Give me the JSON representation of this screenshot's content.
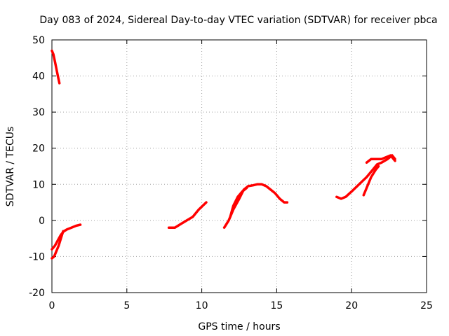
{
  "chart_data": {
    "type": "line",
    "title": "Day 083 of 2024, Sidereal Day-to-day VTEC variation (SDTVAR) for receiver pbca",
    "xlabel": "GPS time / hours",
    "ylabel": "SDTVAR / TECUs",
    "xlim": [
      0,
      25
    ],
    "ylim": [
      -20,
      50
    ],
    "xticks": [
      0,
      5,
      10,
      15,
      20,
      25
    ],
    "yticks": [
      -20,
      -10,
      0,
      10,
      20,
      30,
      40,
      50
    ],
    "grid": true,
    "series_color": "#ff0000",
    "series": [
      {
        "name": "arc-1",
        "points": [
          [
            0.0,
            47
          ],
          [
            0.1,
            46
          ],
          [
            0.2,
            44
          ],
          [
            0.3,
            42
          ],
          [
            0.4,
            40
          ],
          [
            0.5,
            38
          ]
        ]
      },
      {
        "name": "arc-2",
        "points": [
          [
            0.0,
            -8
          ],
          [
            0.2,
            -7
          ],
          [
            0.4,
            -5.5
          ],
          [
            0.6,
            -4
          ],
          [
            0.8,
            -3
          ],
          [
            1.0,
            -2.5
          ],
          [
            1.3,
            -2
          ],
          [
            1.6,
            -1.5
          ],
          [
            1.9,
            -1.2
          ]
        ]
      },
      {
        "name": "arc-3",
        "points": [
          [
            0.0,
            -10.5
          ],
          [
            0.15,
            -10
          ],
          [
            0.3,
            -8.5
          ],
          [
            0.45,
            -7
          ],
          [
            0.6,
            -5
          ],
          [
            0.75,
            -3
          ]
        ]
      },
      {
        "name": "arc-4",
        "points": [
          [
            7.8,
            -2
          ],
          [
            8.2,
            -2
          ],
          [
            8.6,
            -1
          ],
          [
            9.0,
            0
          ],
          [
            9.4,
            1
          ],
          [
            9.8,
            3
          ],
          [
            10.3,
            5
          ]
        ]
      },
      {
        "name": "arc-5",
        "points": [
          [
            11.5,
            -2
          ],
          [
            11.8,
            0
          ],
          [
            12.1,
            3
          ],
          [
            12.5,
            6
          ],
          [
            12.8,
            8.5
          ],
          [
            13.1,
            9.5
          ],
          [
            13.4,
            9.7
          ],
          [
            13.7,
            10
          ],
          [
            14.0,
            10
          ],
          [
            14.3,
            9.5
          ],
          [
            14.6,
            8.5
          ],
          [
            14.9,
            7.5
          ],
          [
            15.2,
            6
          ],
          [
            15.5,
            5
          ],
          [
            15.7,
            5
          ]
        ]
      },
      {
        "name": "arc-6",
        "points": [
          [
            11.9,
            1
          ],
          [
            12.1,
            4
          ],
          [
            12.4,
            6.5
          ],
          [
            12.7,
            8
          ],
          [
            13.0,
            9
          ]
        ]
      },
      {
        "name": "arc-7",
        "points": [
          [
            19.0,
            6.5
          ],
          [
            19.3,
            6
          ],
          [
            19.6,
            6.5
          ],
          [
            20.0,
            8
          ],
          [
            20.5,
            10
          ],
          [
            21.0,
            12
          ],
          [
            21.4,
            14
          ],
          [
            21.7,
            15.5
          ],
          [
            22.0,
            16
          ],
          [
            22.4,
            17
          ],
          [
            22.7,
            18
          ],
          [
            22.9,
            17
          ]
        ]
      },
      {
        "name": "arc-8",
        "points": [
          [
            20.8,
            7
          ],
          [
            21.0,
            9
          ],
          [
            21.3,
            12
          ],
          [
            21.6,
            14
          ],
          [
            21.8,
            15
          ]
        ]
      },
      {
        "name": "arc-9",
        "points": [
          [
            21.0,
            16
          ],
          [
            21.3,
            17
          ],
          [
            21.7,
            17
          ],
          [
            22.0,
            17
          ],
          [
            22.3,
            17.5
          ],
          [
            22.6,
            18
          ],
          [
            22.9,
            16.5
          ]
        ]
      }
    ]
  }
}
